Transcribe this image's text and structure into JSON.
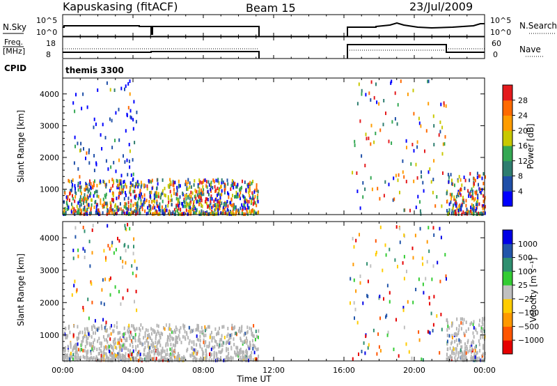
{
  "header": {
    "station": "Kapuskasing (fitACF)",
    "beam": "Beam 15",
    "date": "23/Jul/2009"
  },
  "panels": {
    "nsky": {
      "left_label": "N.Sky",
      "right_label": "N.Search",
      "left_ticks": [
        "10^5",
        "10^0"
      ],
      "right_ticks": [
        "10^5",
        "10^0"
      ],
      "right_line_legend": "dotted"
    },
    "freq": {
      "left_label_line1": "Freq.",
      "left_label_line2": "[MHz]",
      "right_label": "Nave",
      "left_ticks": [
        "18",
        "8"
      ],
      "right_ticks": [
        "60",
        "0"
      ],
      "right_line_legend": "dotted"
    },
    "cpid": {
      "label": "CPID",
      "program": "themis 3300"
    }
  },
  "colors": {
    "power_scale": [
      "#0000ff",
      "#1f4fa8",
      "#2e7d6f",
      "#34a853",
      "#c8c800",
      "#ff9c00",
      "#ff6a00",
      "#e41a1c"
    ],
    "velocity_scale": [
      "#0000e6",
      "#2255aa",
      "#2f8f6f",
      "#33cc33",
      "#c0c0c0",
      "#ffcc00",
      "#ff9900",
      "#ff5500",
      "#e60000"
    ],
    "ground_scatter": "#b4b4b4"
  },
  "chart_data": [
    {
      "type": "heatmap",
      "name": "power-panel",
      "ylabel": "Slant Range [km]",
      "yticks": [
        "1000",
        "2000",
        "3000",
        "4000"
      ],
      "ylim": [
        200,
        4500
      ],
      "xlim": [
        0,
        24
      ],
      "colorbar_label": "Power [dB]",
      "colorbar_ticks": [
        "28",
        "24",
        "20",
        "16",
        "12",
        "8",
        "4"
      ],
      "colorbar_range": [
        0,
        32
      ],
      "scatter_regions": [
        {
          "t_start": 0.0,
          "t_end": 11.1,
          "r_start": 200,
          "r_end": 1300,
          "density": "high",
          "dominant": "mixed"
        },
        {
          "t_start": 0.5,
          "t_end": 4.2,
          "r_start": 1300,
          "r_end": 4400,
          "density": "sparse",
          "dominant": "blue"
        },
        {
          "t_start": 16.3,
          "t_end": 21.8,
          "r_start": 200,
          "r_end": 4400,
          "density": "sparse",
          "dominant": "mixed"
        },
        {
          "t_start": 21.8,
          "t_end": 24.0,
          "r_start": 200,
          "r_end": 1500,
          "density": "high",
          "dominant": "mixed"
        }
      ]
    },
    {
      "type": "heatmap",
      "name": "velocity-panel",
      "ylabel": "Slant Range [km]",
      "yticks": [
        "1000",
        "2000",
        "3000",
        "4000"
      ],
      "ylim": [
        200,
        4500
      ],
      "xlim": [
        0,
        24
      ],
      "xlabel": "Time UT",
      "xticks": [
        "00:00",
        "04:00",
        "08:00",
        "12:00",
        "16:00",
        "20:00",
        "00:00"
      ],
      "colorbar_label": "Velocity [m s⁻¹]",
      "colorbar_ticks": [
        "1000",
        "500",
        "100",
        "25",
        "−25",
        "−100",
        "−500",
        "−1000"
      ],
      "colorbar_range": [
        -1000,
        1000
      ],
      "scatter_regions": [
        {
          "t_start": 0.0,
          "t_end": 11.1,
          "r_start": 200,
          "r_end": 1300,
          "density": "high",
          "dominant": "ground-scatter-grey"
        },
        {
          "t_start": 0.5,
          "t_end": 4.2,
          "r_start": 1300,
          "r_end": 4400,
          "density": "sparse",
          "dominant": "mixed"
        },
        {
          "t_start": 16.3,
          "t_end": 21.8,
          "r_start": 200,
          "r_end": 4400,
          "density": "sparse",
          "dominant": "mixed"
        },
        {
          "t_start": 21.8,
          "t_end": 24.0,
          "r_start": 200,
          "r_end": 1500,
          "density": "high",
          "dominant": "ground-scatter-grey"
        }
      ]
    },
    {
      "type": "line",
      "name": "nsky-series",
      "xlim": [
        0,
        24
      ],
      "data_gaps": [
        [
          11.1,
          16.3
        ]
      ],
      "level": "high",
      "dips_at": [
        5.0
      ]
    },
    {
      "type": "line",
      "name": "freq-series",
      "xlim": [
        0,
        24
      ],
      "segments": [
        {
          "t_start": 0.0,
          "t_end": 11.1,
          "value": "~10 MHz"
        },
        {
          "t_start": 16.3,
          "t_end": 21.8,
          "value": "~17 MHz"
        },
        {
          "t_start": 21.8,
          "t_end": 24.0,
          "value": "~10 MHz"
        }
      ]
    }
  ]
}
